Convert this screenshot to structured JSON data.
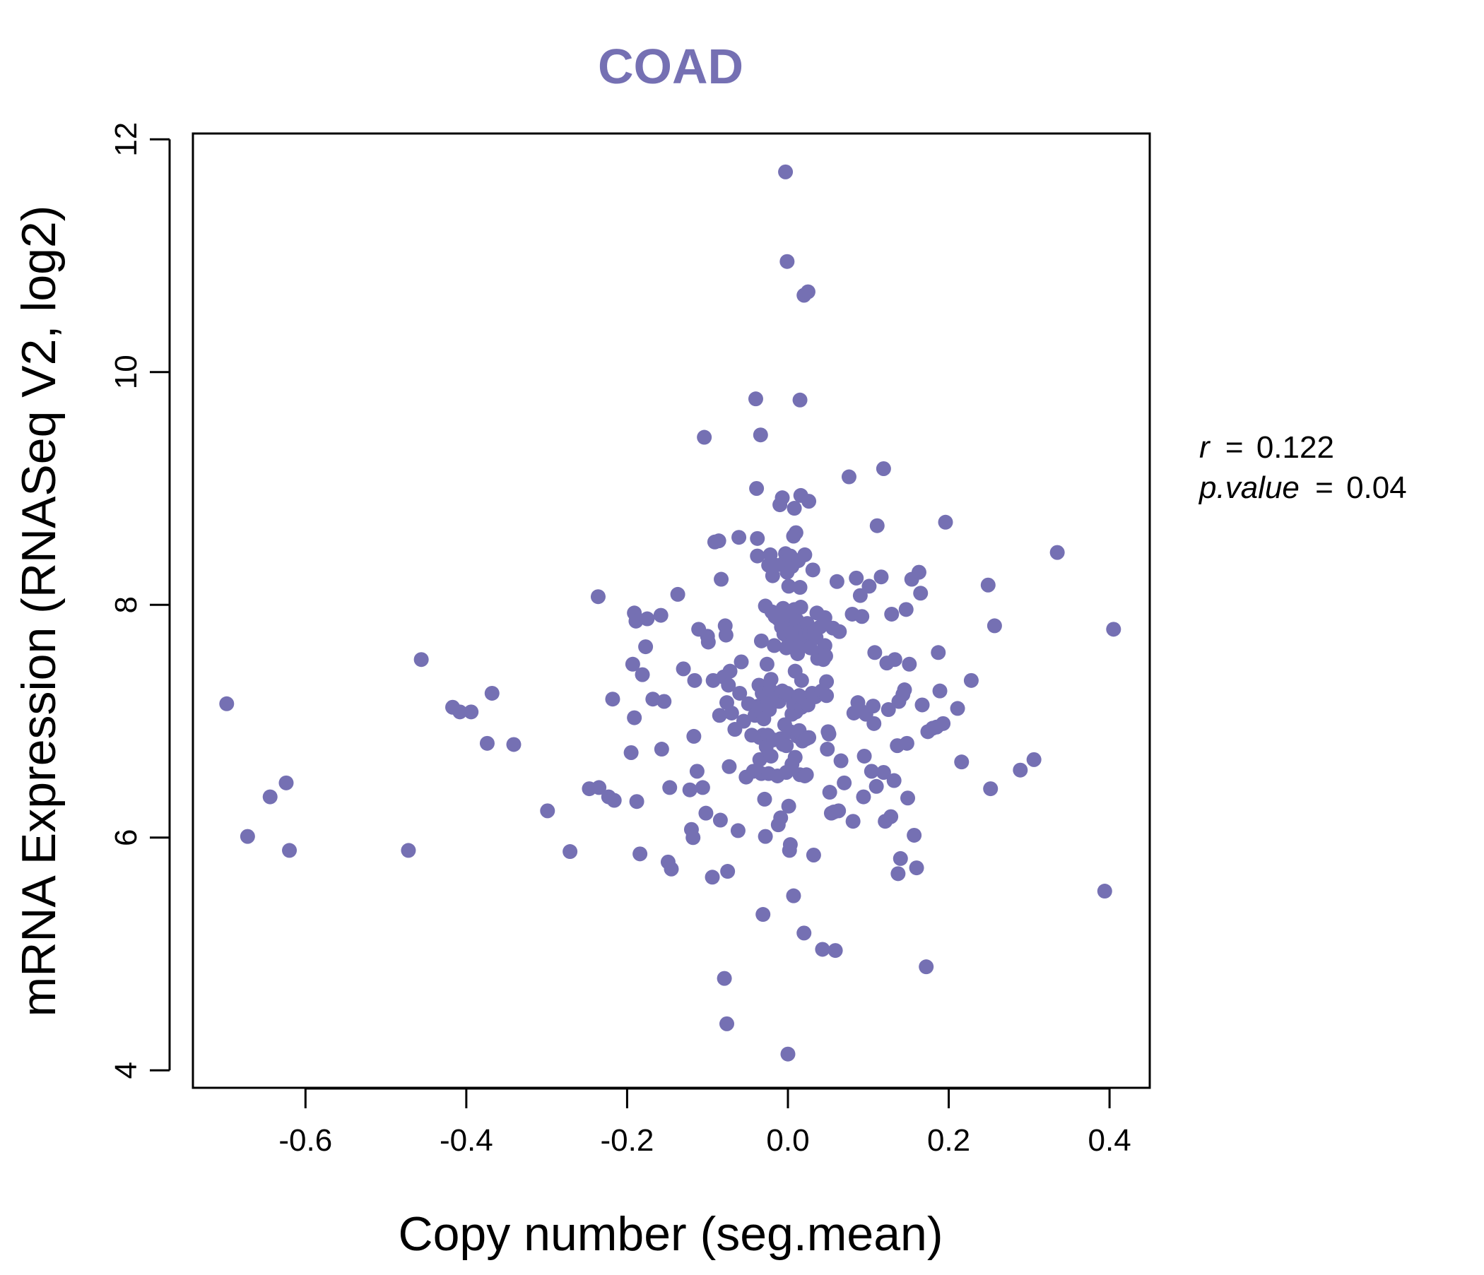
{
  "chart_data": {
    "type": "scatter",
    "title": "COAD",
    "xlabel": "Copy number (seg.mean)",
    "ylabel": "mRNA Expression (RNASeq V2, log2)",
    "xlim": [
      -0.74,
      0.45
    ],
    "ylim": [
      3.85,
      12.05
    ],
    "x_ticks": [
      -0.6,
      -0.4,
      -0.2,
      0.0,
      0.2,
      0.4
    ],
    "x_tick_labels": [
      "-0.6",
      "-0.4",
      "-0.2",
      "0.0",
      "0.2",
      "0.4"
    ],
    "y_ticks": [
      4,
      6,
      8,
      10,
      12
    ],
    "y_tick_labels": [
      "4",
      "6",
      "8",
      "10",
      "12"
    ],
    "point_color": "#7570B3",
    "title_color": "#7570B3",
    "stats": {
      "r_label": "r",
      "r_value": "0.122",
      "p_label": "p.value",
      "p_value": "0.04",
      "equals": "="
    },
    "points": [
      [
        -0.698,
        7.15
      ],
      [
        -0.672,
        6.01
      ],
      [
        -0.644,
        6.35
      ],
      [
        -0.624,
        6.47
      ],
      [
        -0.62,
        5.89
      ],
      [
        -0.472,
        5.89
      ],
      [
        -0.456,
        7.53
      ],
      [
        -0.417,
        7.12
      ],
      [
        -0.408,
        7.08
      ],
      [
        -0.394,
        7.08
      ],
      [
        -0.374,
        6.81
      ],
      [
        -0.368,
        7.24
      ],
      [
        -0.341,
        6.8
      ],
      [
        -0.299,
        6.23
      ],
      [
        -0.271,
        5.88
      ],
      [
        -0.247,
        6.42
      ],
      [
        -0.236,
        8.07
      ],
      [
        -0.235,
        6.43
      ],
      [
        -0.223,
        6.35
      ],
      [
        -0.218,
        7.19
      ],
      [
        -0.216,
        6.32
      ],
      [
        -0.195,
        6.73
      ],
      [
        -0.193,
        7.49
      ],
      [
        -0.191,
        7.93
      ],
      [
        -0.191,
        7.03
      ],
      [
        -0.189,
        7.86
      ],
      [
        -0.188,
        6.31
      ],
      [
        -0.184,
        5.86
      ],
      [
        -0.181,
        7.4
      ],
      [
        -0.177,
        7.64
      ],
      [
        -0.175,
        7.88
      ],
      [
        -0.168,
        7.19
      ],
      [
        -0.158,
        7.91
      ],
      [
        -0.157,
        6.76
      ],
      [
        -0.154,
        7.17
      ],
      [
        -0.149,
        5.79
      ],
      [
        -0.147,
        6.43
      ],
      [
        -0.145,
        5.73
      ],
      [
        -0.137,
        8.09
      ],
      [
        -0.13,
        7.45
      ],
      [
        -0.122,
        6.41
      ],
      [
        -0.12,
        6.07
      ],
      [
        -0.118,
        6.0
      ],
      [
        -0.117,
        6.87
      ],
      [
        -0.116,
        7.35
      ],
      [
        -0.113,
        6.57
      ],
      [
        -0.111,
        7.79
      ],
      [
        -0.106,
        6.43
      ],
      [
        -0.104,
        9.44
      ],
      [
        -0.102,
        6.21
      ],
      [
        -0.1,
        7.73
      ],
      [
        -0.099,
        7.68
      ],
      [
        -0.094,
        5.66
      ],
      [
        -0.093,
        7.35
      ],
      [
        -0.091,
        8.54
      ],
      [
        -0.086,
        8.55
      ],
      [
        -0.085,
        7.05
      ],
      [
        -0.084,
        6.15
      ],
      [
        -0.083,
        8.22
      ],
      [
        -0.08,
        7.38
      ],
      [
        -0.079,
        4.79
      ],
      [
        -0.078,
        7.82
      ],
      [
        -0.077,
        7.74
      ],
      [
        -0.076,
        7.16
      ],
      [
        -0.076,
        4.4
      ],
      [
        -0.075,
        5.71
      ],
      [
        -0.074,
        7.31
      ],
      [
        -0.073,
        6.61
      ],
      [
        -0.072,
        7.43
      ],
      [
        -0.07,
        7.07
      ],
      [
        -0.066,
        6.93
      ],
      [
        -0.062,
        6.06
      ],
      [
        -0.061,
        8.58
      ],
      [
        -0.06,
        7.24
      ],
      [
        -0.058,
        7.51
      ],
      [
        -0.055,
        7.0
      ],
      [
        -0.052,
        6.52
      ],
      [
        -0.049,
        7.15
      ],
      [
        -0.045,
        6.88
      ],
      [
        -0.043,
        6.57
      ],
      [
        -0.041,
        7.05
      ],
      [
        -0.04,
        9.77
      ],
      [
        -0.039,
        9.0
      ],
      [
        -0.038,
        8.57
      ],
      [
        -0.038,
        8.42
      ],
      [
        -0.037,
        7.13
      ],
      [
        -0.036,
        7.31
      ],
      [
        -0.035,
        6.67
      ],
      [
        -0.035,
        6.86
      ],
      [
        -0.034,
        9.46
      ],
      [
        -0.033,
        7.69
      ],
      [
        -0.033,
        6.55
      ],
      [
        -0.032,
        7.24
      ],
      [
        -0.031,
        6.88
      ],
      [
        -0.031,
        5.34
      ],
      [
        -0.03,
        7.02
      ],
      [
        -0.029,
        6.33
      ],
      [
        -0.028,
        7.99
      ],
      [
        -0.028,
        6.01
      ],
      [
        -0.027,
        6.78
      ],
      [
        -0.026,
        7.49
      ],
      [
        -0.025,
        7.16
      ],
      [
        -0.025,
        6.88
      ],
      [
        -0.024,
        6.55
      ],
      [
        -0.024,
        8.34
      ],
      [
        -0.023,
        7.1
      ],
      [
        -0.022,
        8.43
      ],
      [
        -0.022,
        7.27
      ],
      [
        -0.021,
        7.36
      ],
      [
        -0.021,
        6.7
      ],
      [
        -0.02,
        7.94
      ],
      [
        -0.019,
        8.25
      ],
      [
        -0.018,
        6.84
      ],
      [
        -0.017,
        7.65
      ],
      [
        -0.016,
        7.9
      ],
      [
        -0.015,
        8.34
      ],
      [
        -0.014,
        7.2
      ],
      [
        -0.013,
        6.53
      ],
      [
        -0.012,
        7.88
      ],
      [
        -0.012,
        6.11
      ],
      [
        -0.011,
        7.17
      ],
      [
        -0.01,
        8.86
      ],
      [
        -0.009,
        6.17
      ],
      [
        -0.009,
        6.85
      ],
      [
        -0.008,
        7.81
      ],
      [
        -0.007,
        8.92
      ],
      [
        -0.007,
        7.26
      ],
      [
        -0.006,
        7.97
      ],
      [
        -0.006,
        6.8
      ],
      [
        -0.005,
        7.75
      ],
      [
        -0.005,
        8.36
      ],
      [
        -0.004,
        6.97
      ],
      [
        -0.003,
        11.72
      ],
      [
        -0.003,
        8.44
      ],
      [
        -0.003,
        7.84
      ],
      [
        -0.002,
        7.63
      ],
      [
        -0.002,
        6.79
      ],
      [
        -0.002,
        6.56
      ],
      [
        -0.001,
        10.95
      ],
      [
        -0.001,
        8.28
      ],
      [
        -0.001,
        7.24
      ],
      [
        0.0,
        4.14
      ],
      [
        0.0,
        7.72
      ],
      [
        0.001,
        8.16
      ],
      [
        0.001,
        6.27
      ],
      [
        0.002,
        7.91
      ],
      [
        0.002,
        5.89
      ],
      [
        0.003,
        8.42
      ],
      [
        0.003,
        6.91
      ],
      [
        0.003,
        5.94
      ],
      [
        0.004,
        7.76
      ],
      [
        0.004,
        7.21
      ],
      [
        0.005,
        8.33
      ],
      [
        0.005,
        7.06
      ],
      [
        0.005,
        6.63
      ],
      [
        0.006,
        7.69
      ],
      [
        0.007,
        8.59
      ],
      [
        0.007,
        7.14
      ],
      [
        0.007,
        5.5
      ],
      [
        0.008,
        8.83
      ],
      [
        0.008,
        7.96
      ],
      [
        0.009,
        7.43
      ],
      [
        0.009,
        6.69
      ],
      [
        0.01,
        8.62
      ],
      [
        0.01,
        7.75
      ],
      [
        0.01,
        7.08
      ],
      [
        0.011,
        7.87
      ],
      [
        0.012,
        6.87
      ],
      [
        0.012,
        7.58
      ],
      [
        0.013,
        8.38
      ],
      [
        0.014,
        7.22
      ],
      [
        0.014,
        6.92
      ],
      [
        0.015,
        8.15
      ],
      [
        0.015,
        6.54
      ],
      [
        0.015,
        9.76
      ],
      [
        0.016,
        8.94
      ],
      [
        0.016,
        7.98
      ],
      [
        0.016,
        7.68
      ],
      [
        0.017,
        7.35
      ],
      [
        0.017,
        7.12
      ],
      [
        0.018,
        6.83
      ],
      [
        0.019,
        7.79
      ],
      [
        0.019,
        7.2
      ],
      [
        0.02,
        10.66
      ],
      [
        0.02,
        5.18
      ],
      [
        0.021,
        8.43
      ],
      [
        0.021,
        6.53
      ],
      [
        0.022,
        7.74
      ],
      [
        0.023,
        6.85
      ],
      [
        0.023,
        6.54
      ],
      [
        0.024,
        7.84
      ],
      [
        0.025,
        10.69
      ],
      [
        0.025,
        7.14
      ],
      [
        0.026,
        8.89
      ],
      [
        0.026,
        6.86
      ],
      [
        0.027,
        7.76
      ],
      [
        0.028,
        7.63
      ],
      [
        0.03,
        7.24
      ],
      [
        0.031,
        8.3
      ],
      [
        0.032,
        5.85
      ],
      [
        0.033,
        7.77
      ],
      [
        0.034,
        7.21
      ],
      [
        0.035,
        7.72
      ],
      [
        0.036,
        7.93
      ],
      [
        0.037,
        7.54
      ],
      [
        0.04,
        7.81
      ],
      [
        0.04,
        7.58
      ],
      [
        0.042,
        7.26
      ],
      [
        0.043,
        5.04
      ],
      [
        0.044,
        7.53
      ],
      [
        0.046,
        7.89
      ],
      [
        0.046,
        7.65
      ],
      [
        0.047,
        7.56
      ],
      [
        0.048,
        7.34
      ],
      [
        0.048,
        7.22
      ],
      [
        0.049,
        6.76
      ],
      [
        0.05,
        6.91
      ],
      [
        0.051,
        6.89
      ],
      [
        0.052,
        6.39
      ],
      [
        0.054,
        6.21
      ],
      [
        0.056,
        7.8
      ],
      [
        0.057,
        6.22
      ],
      [
        0.059,
        5.03
      ],
      [
        0.061,
        8.2
      ],
      [
        0.063,
        6.23
      ],
      [
        0.064,
        7.77
      ],
      [
        0.066,
        6.66
      ],
      [
        0.07,
        6.47
      ],
      [
        0.076,
        9.1
      ],
      [
        0.08,
        7.92
      ],
      [
        0.081,
        6.14
      ],
      [
        0.082,
        7.07
      ],
      [
        0.085,
        8.23
      ],
      [
        0.087,
        7.16
      ],
      [
        0.089,
        7.1
      ],
      [
        0.09,
        8.08
      ],
      [
        0.092,
        7.9
      ],
      [
        0.094,
        6.35
      ],
      [
        0.095,
        6.7
      ],
      [
        0.097,
        7.06
      ],
      [
        0.101,
        8.16
      ],
      [
        0.104,
        6.57
      ],
      [
        0.106,
        7.13
      ],
      [
        0.107,
        6.98
      ],
      [
        0.108,
        7.59
      ],
      [
        0.11,
        6.44
      ],
      [
        0.111,
        8.68
      ],
      [
        0.116,
        8.24
      ],
      [
        0.119,
        6.56
      ],
      [
        0.119,
        9.17
      ],
      [
        0.121,
        6.14
      ],
      [
        0.123,
        7.5
      ],
      [
        0.125,
        7.1
      ],
      [
        0.128,
        6.18
      ],
      [
        0.129,
        7.92
      ],
      [
        0.132,
        6.49
      ],
      [
        0.133,
        7.53
      ],
      [
        0.136,
        6.79
      ],
      [
        0.137,
        5.69
      ],
      [
        0.138,
        7.17
      ],
      [
        0.14,
        5.82
      ],
      [
        0.143,
        7.23
      ],
      [
        0.145,
        7.27
      ],
      [
        0.147,
        7.96
      ],
      [
        0.148,
        6.81
      ],
      [
        0.149,
        6.34
      ],
      [
        0.151,
        7.49
      ],
      [
        0.154,
        8.22
      ],
      [
        0.157,
        6.02
      ],
      [
        0.16,
        5.74
      ],
      [
        0.163,
        8.28
      ],
      [
        0.165,
        8.1
      ],
      [
        0.167,
        7.14
      ],
      [
        0.172,
        4.89
      ],
      [
        0.174,
        6.91
      ],
      [
        0.18,
        6.94
      ],
      [
        0.185,
        6.95
      ],
      [
        0.187,
        7.59
      ],
      [
        0.189,
        7.26
      ],
      [
        0.193,
        6.98
      ],
      [
        0.196,
        8.71
      ],
      [
        0.211,
        7.11
      ],
      [
        0.216,
        6.65
      ],
      [
        0.228,
        7.35
      ],
      [
        0.249,
        8.17
      ],
      [
        0.252,
        6.42
      ],
      [
        0.257,
        7.82
      ],
      [
        0.289,
        6.58
      ],
      [
        0.306,
        6.67
      ],
      [
        0.335,
        8.45
      ],
      [
        0.394,
        5.54
      ],
      [
        0.405,
        7.79
      ]
    ]
  }
}
